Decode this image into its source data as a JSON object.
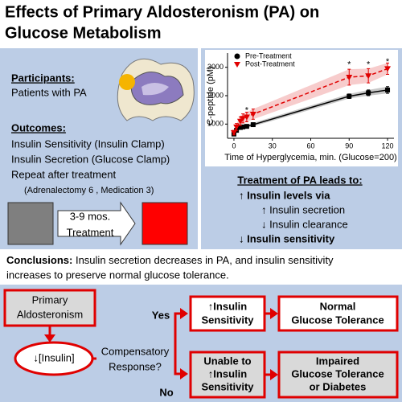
{
  "header": {
    "title_lines": [
      "Effects of Primary Aldosteronism (PA) on",
      "Glucose Metabolism"
    ]
  },
  "participants": {
    "heading": "Participants:",
    "text": "Patients with PA"
  },
  "outcomes": {
    "heading": "Outcomes:",
    "lines": [
      "Insulin Sensitivity (Insulin Clamp)",
      "Insulin Secretion (Glucose Clamp)",
      "Repeat after treatment",
      "(Adrenalectomy 6 , Medication 3)"
    ]
  },
  "treatment_arrow": {
    "duration": "3-9 mos.",
    "label": "Treatment"
  },
  "chart_data": {
    "type": "line",
    "x": [
      0,
      2,
      5,
      7,
      10,
      15,
      90,
      105,
      120
    ],
    "series": [
      {
        "name": "Pre-Treatment",
        "color": "#000000",
        "marker": "square",
        "band_color": "#b0b0b0",
        "values": [
          650,
          780,
          880,
          900,
          920,
          980,
          1980,
          2100,
          2200
        ],
        "errors": [
          60,
          60,
          60,
          60,
          60,
          60,
          80,
          100,
          120
        ]
      },
      {
        "name": "Post-Treatment",
        "color": "#e00000",
        "marker": "triangle",
        "dashed": true,
        "band_color": "#f4b6b6",
        "values": [
          700,
          900,
          1100,
          1200,
          1250,
          1350,
          2650,
          2700,
          2950
        ],
        "errors": [
          80,
          120,
          150,
          160,
          170,
          180,
          280,
          250,
          200
        ]
      }
    ],
    "annotations": [
      {
        "text": "*",
        "x": 10,
        "y": 1480
      },
      {
        "text": "*",
        "x": 90,
        "y": 3080
      },
      {
        "text": "*",
        "x": 105,
        "y": 3080
      },
      {
        "text": "*",
        "x": 120,
        "y": 3180
      }
    ],
    "xlabel": "Time of Hyperglycemia, min. (Glucose=200)",
    "ylabel": "C-peptide (pM)",
    "xlim": [
      -5,
      125
    ],
    "xticks": [
      0,
      30,
      60,
      90,
      120
    ],
    "ylim": [
      500,
      3500
    ],
    "yticks": [
      1000,
      2000,
      3000
    ],
    "legend": "upper left"
  },
  "findings": {
    "heading": "Treatment of PA leads to:",
    "items": [
      "↑ Insulin levels via",
      "↑ Insulin secretion",
      "↓ Insulin clearance",
      "↓ Insulin sensitivity"
    ]
  },
  "conclusions": {
    "label": "Conclusions:",
    "lines": [
      "Insulin secretion decreases in PA, and insulin sensitivity",
      "increases to preserve normal glucose tolerance."
    ]
  },
  "flowchart": {
    "nodes": [
      {
        "lines": [
          "Primary",
          "Aldosteronism"
        ]
      },
      {
        "lines": [
          "↓[Insulin]"
        ]
      },
      {
        "lines": [
          "↑Insulin",
          "Sensitivity"
        ]
      },
      {
        "lines": [
          "Normal",
          "Glucose Tolerance"
        ]
      },
      {
        "lines": [
          "Unable to",
          "↑Insulin",
          "Sensitivity"
        ]
      },
      {
        "lines": [
          "Impaired",
          "Glucose Tolerance",
          "or Diabetes"
        ]
      }
    ],
    "question_lines": [
      "Compensatory",
      "Response?"
    ],
    "branches": [
      "Yes",
      "No"
    ]
  }
}
